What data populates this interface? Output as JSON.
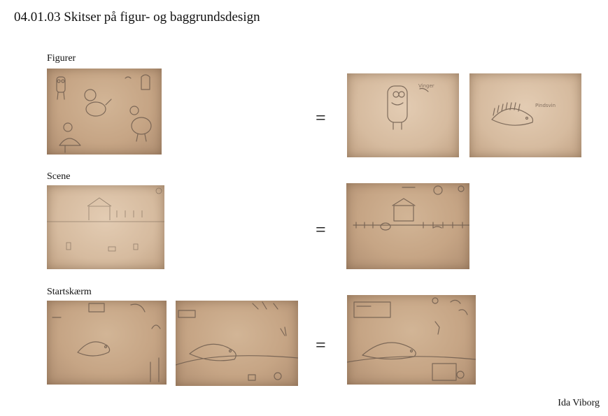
{
  "title": "04.01.03 Skitser på figur- og baggrundsdesign",
  "sections": {
    "figurer": "Figurer",
    "scene": "Scene",
    "startskaerm": "Startskærm"
  },
  "equals": "=",
  "author": "Ida Viborg"
}
